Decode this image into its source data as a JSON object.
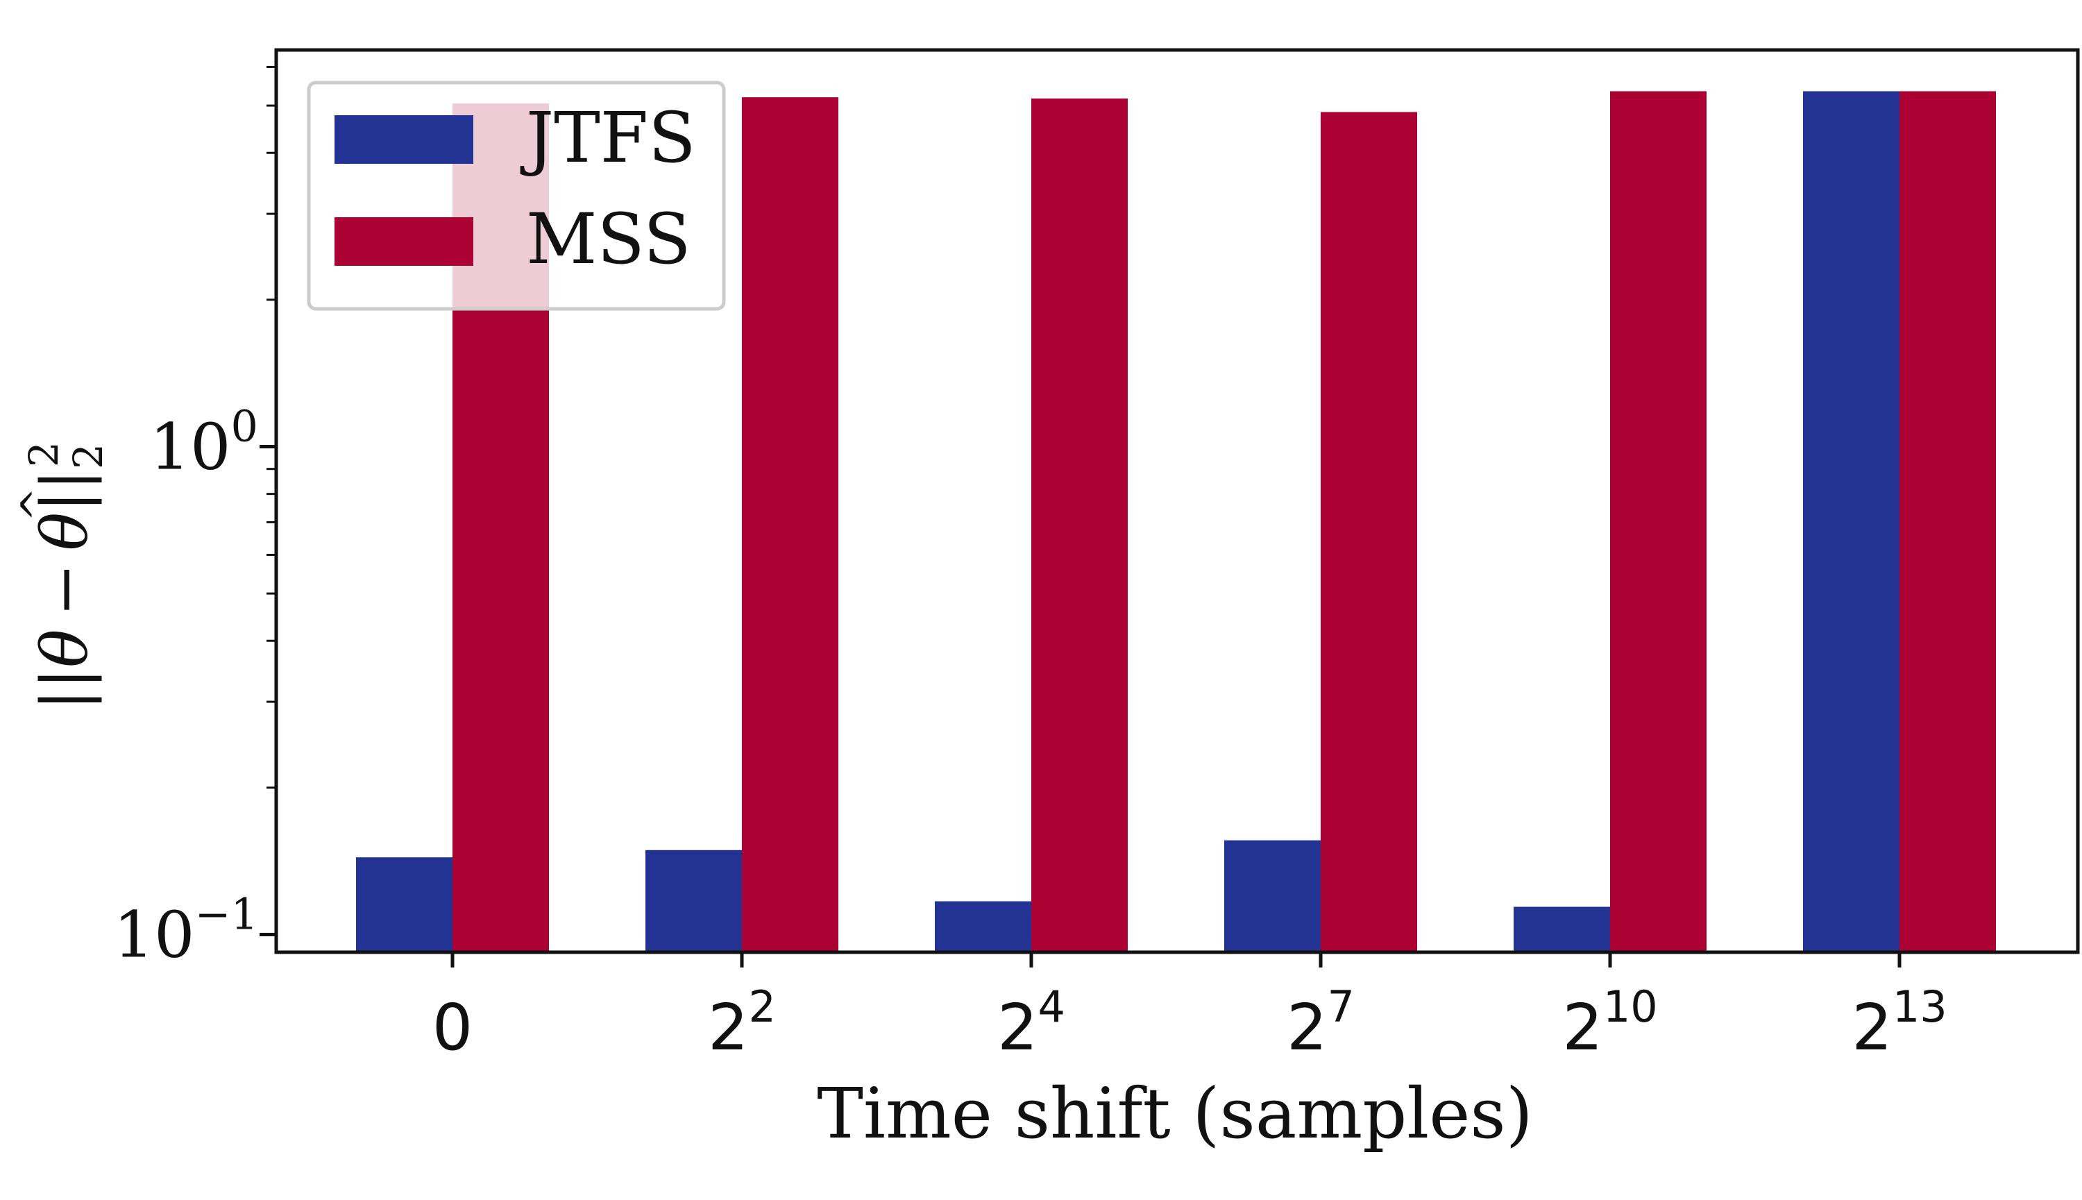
{
  "chart_data": {
    "type": "bar",
    "title": "",
    "xlabel": "Time shift (samples)",
    "ylabel": "||θ − θ̂||₂²",
    "ylabel_parts": {
      "open": "||",
      "theta": "θ",
      "minus": "−",
      "theta_hat": "θ",
      "hat": "^",
      "close": "||",
      "subscript": "2",
      "superscript": "2"
    },
    "yscale": "log",
    "ylim": [
      0.092,
      6.5
    ],
    "categories": [
      {
        "base": "0",
        "exp": ""
      },
      {
        "base": "2",
        "exp": "2"
      },
      {
        "base": "2",
        "exp": "4"
      },
      {
        "base": "2",
        "exp": "7"
      },
      {
        "base": "2",
        "exp": "10"
      },
      {
        "base": "2",
        "exp": "13"
      }
    ],
    "yticks": [
      {
        "value": 0.1,
        "base": "10",
        "exp": "−1"
      },
      {
        "value": 1,
        "base": "10",
        "exp": "0"
      }
    ],
    "series": [
      {
        "name": "JTFS",
        "color": "#233394",
        "values": [
          0.144,
          0.149,
          0.117,
          0.156,
          0.114,
          5.35
        ]
      },
      {
        "name": "MSS",
        "color": "#ac0233",
        "values": [
          5.05,
          5.2,
          5.17,
          4.85,
          5.35,
          5.35
        ]
      }
    ],
    "legend": {
      "placement": "top-left"
    },
    "grid": false
  }
}
